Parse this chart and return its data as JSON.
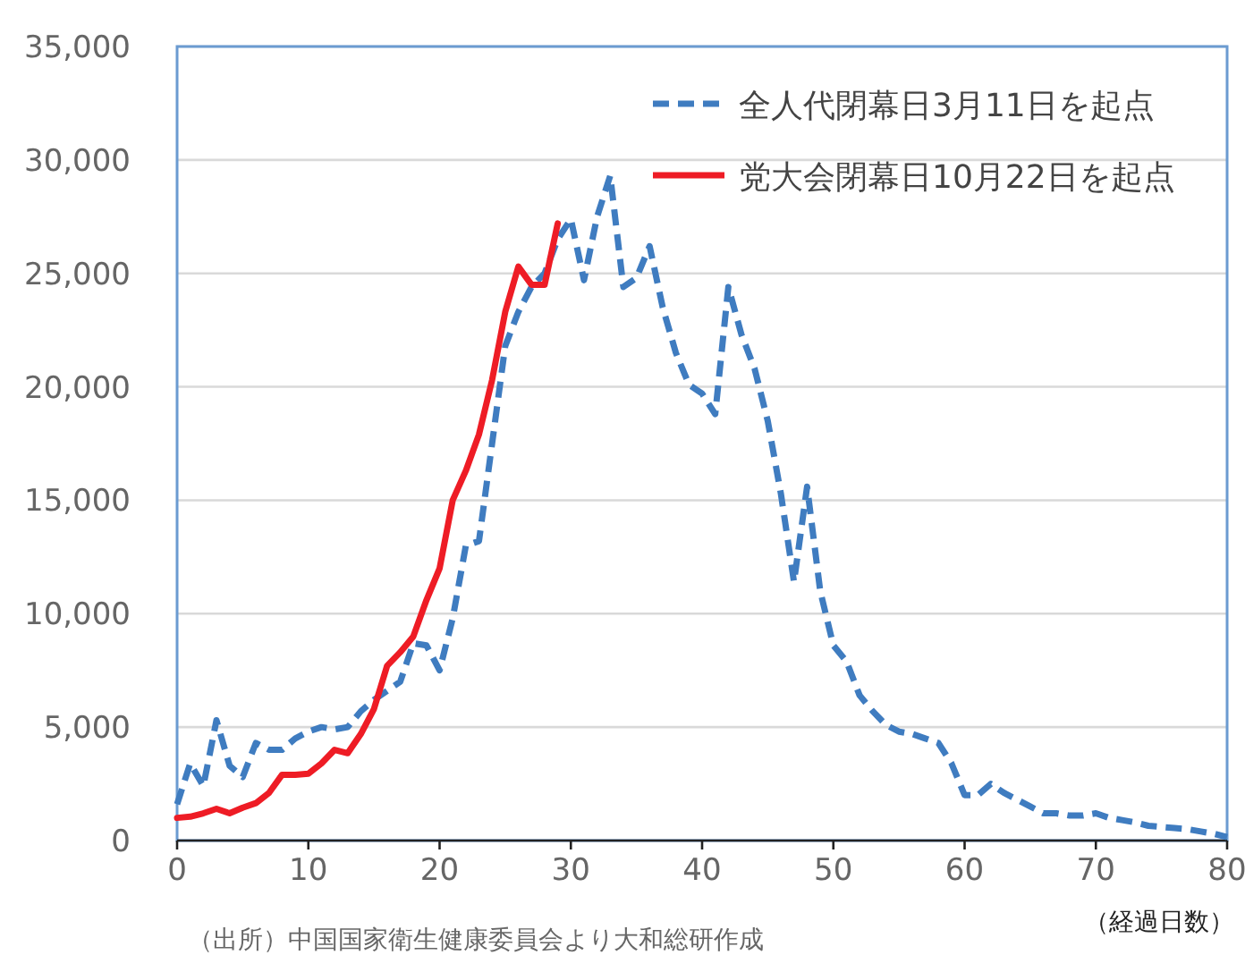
{
  "chart_data": {
    "type": "line",
    "xlabel": "（経過日数）",
    "annotations": [
      "（出所）中国国家衛生健康委員会より大和総研作成"
    ],
    "xlim": [
      0,
      80
    ],
    "xticks": [
      0,
      10,
      20,
      30,
      40,
      50,
      60,
      70,
      80
    ],
    "ylim": [
      0,
      35000
    ],
    "yticks": [
      0,
      {
        "value": 5000,
        "label": "5,000"
      },
      {
        "value": 10000,
        "label": "10,000"
      },
      {
        "value": 15000,
        "label": "15,000"
      },
      {
        "value": 20000,
        "label": "20,000"
      },
      {
        "value": 25000,
        "label": "25,000"
      },
      {
        "value": 30000,
        "label": "30,000"
      },
      {
        "value": 35000,
        "label": "35,000"
      }
    ],
    "grid": "y",
    "legend": "top right",
    "marker": "none",
    "series": [
      {
        "name": "全人代閉幕日3月11日を起点",
        "color": "#3f7cc0",
        "line_style": "dashed",
        "x": [
          0,
          1,
          2,
          3,
          4,
          5,
          6,
          7,
          8,
          9,
          10,
          11,
          12,
          13,
          14,
          15,
          16,
          17,
          18,
          19,
          20,
          21,
          22,
          23,
          24,
          25,
          26,
          27,
          28,
          29,
          30,
          31,
          32,
          33,
          34,
          35,
          36,
          37,
          38,
          39,
          40,
          41,
          42,
          43,
          44,
          45,
          46,
          47,
          48,
          49,
          50,
          51,
          52,
          53,
          54,
          55,
          56,
          57,
          58,
          59,
          60,
          61,
          62,
          63,
          64,
          65,
          66,
          67,
          68,
          69,
          70,
          71,
          72,
          73,
          74,
          75,
          76,
          77,
          78,
          79,
          80
        ],
        "values": [
          1600,
          3400,
          2400,
          5300,
          3300,
          2800,
          4300,
          4000,
          4000,
          4500,
          4800,
          5000,
          4900,
          5000,
          5700,
          6200,
          6600,
          7000,
          8700,
          8600,
          7500,
          9800,
          13000,
          13200,
          17500,
          21800,
          23300,
          24400,
          25000,
          26500,
          27400,
          24700,
          27500,
          29300,
          24400,
          24800,
          26200,
          23500,
          21500,
          20100,
          19700,
          18800,
          24400,
          22300,
          20800,
          18500,
          15300,
          11400,
          15600,
          11000,
          8600,
          7900,
          6400,
          5700,
          5100,
          4800,
          4700,
          4500,
          4300,
          3400,
          2000,
          2000,
          2500,
          2100,
          1800,
          1500,
          1200,
          1200,
          1100,
          1100,
          1200,
          1000,
          900,
          800,
          650,
          600,
          550,
          500,
          400,
          300,
          150
        ]
      },
      {
        "name": "党大会閉幕日10月22日を起点",
        "color": "#ee1c25",
        "line_style": "solid",
        "x": [
          0,
          1,
          2,
          3,
          4,
          5,
          6,
          7,
          8,
          9,
          10,
          11,
          12,
          13,
          14,
          15,
          16,
          17,
          18,
          19,
          20,
          21,
          22,
          23,
          24,
          25,
          26,
          27,
          28,
          29
        ],
        "values": [
          1000,
          1050,
          1200,
          1400,
          1200,
          1450,
          1650,
          2100,
          2900,
          2900,
          2950,
          3400,
          4000,
          3850,
          4700,
          5800,
          7700,
          8300,
          9000,
          10600,
          12000,
          15000,
          16300,
          17900,
          20300,
          23300,
          25300,
          24500,
          24500,
          27200
        ]
      }
    ]
  }
}
